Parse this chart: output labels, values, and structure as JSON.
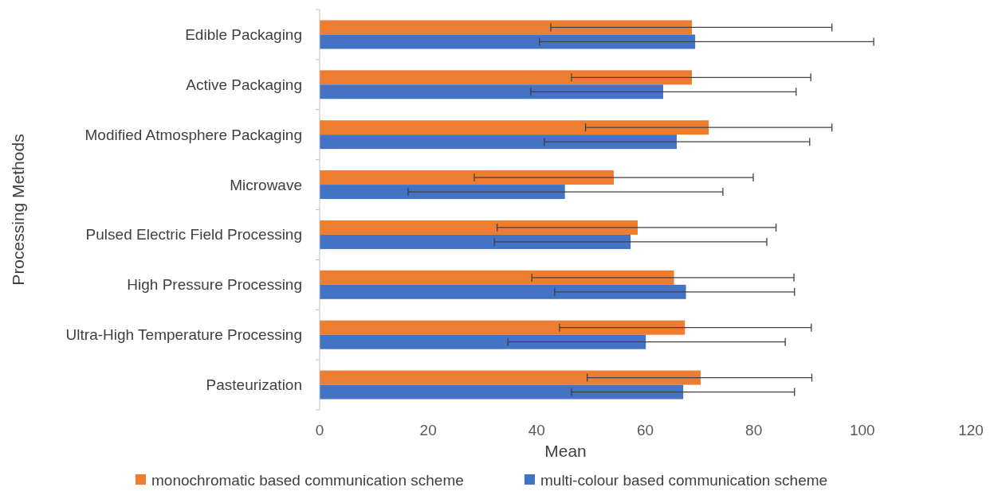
{
  "chart_data": {
    "type": "bar",
    "orientation": "horizontal",
    "xlabel": "Mean",
    "ylabel": "Processing Methods",
    "categories": [
      "Edible Packaging",
      "Active Packaging",
      "Modified Atmosphere Packaging",
      "Microwave",
      "Pulsed Electric Field Processing",
      "High Pressure Processing",
      "Ultra-High Temperature Processing",
      "Pasteurization"
    ],
    "series": [
      {
        "name": "monochromatic based communication scheme",
        "color": "#ed7d31",
        "values": [
          68.6,
          68.6,
          71.7,
          54.2,
          58.6,
          65.3,
          67.3,
          70.2
        ],
        "errors": [
          [
            42.6,
            94.4
          ],
          [
            46.4,
            90.5
          ],
          [
            49.0,
            94.4
          ],
          [
            28.5,
            79.9
          ],
          [
            32.7,
            84.1
          ],
          [
            39.1,
            87.4
          ],
          [
            44.2,
            90.6
          ],
          [
            49.3,
            90.7
          ]
        ]
      },
      {
        "name": "multi-colour based communication scheme",
        "color": "#4472c4",
        "values": [
          69.2,
          63.3,
          65.8,
          45.2,
          57.3,
          67.5,
          60.1,
          67.0
        ],
        "errors": [
          [
            40.5,
            102.1
          ],
          [
            38.9,
            87.8
          ],
          [
            41.4,
            90.3
          ],
          [
            16.3,
            74.3
          ],
          [
            32.2,
            82.4
          ],
          [
            43.3,
            87.5
          ],
          [
            34.7,
            85.8
          ],
          [
            46.4,
            87.5
          ]
        ]
      }
    ],
    "xlim": [
      0,
      120
    ],
    "xticks": [
      0,
      20,
      40,
      60,
      80,
      100,
      120
    ],
    "grid": false,
    "legend": "bottom"
  }
}
